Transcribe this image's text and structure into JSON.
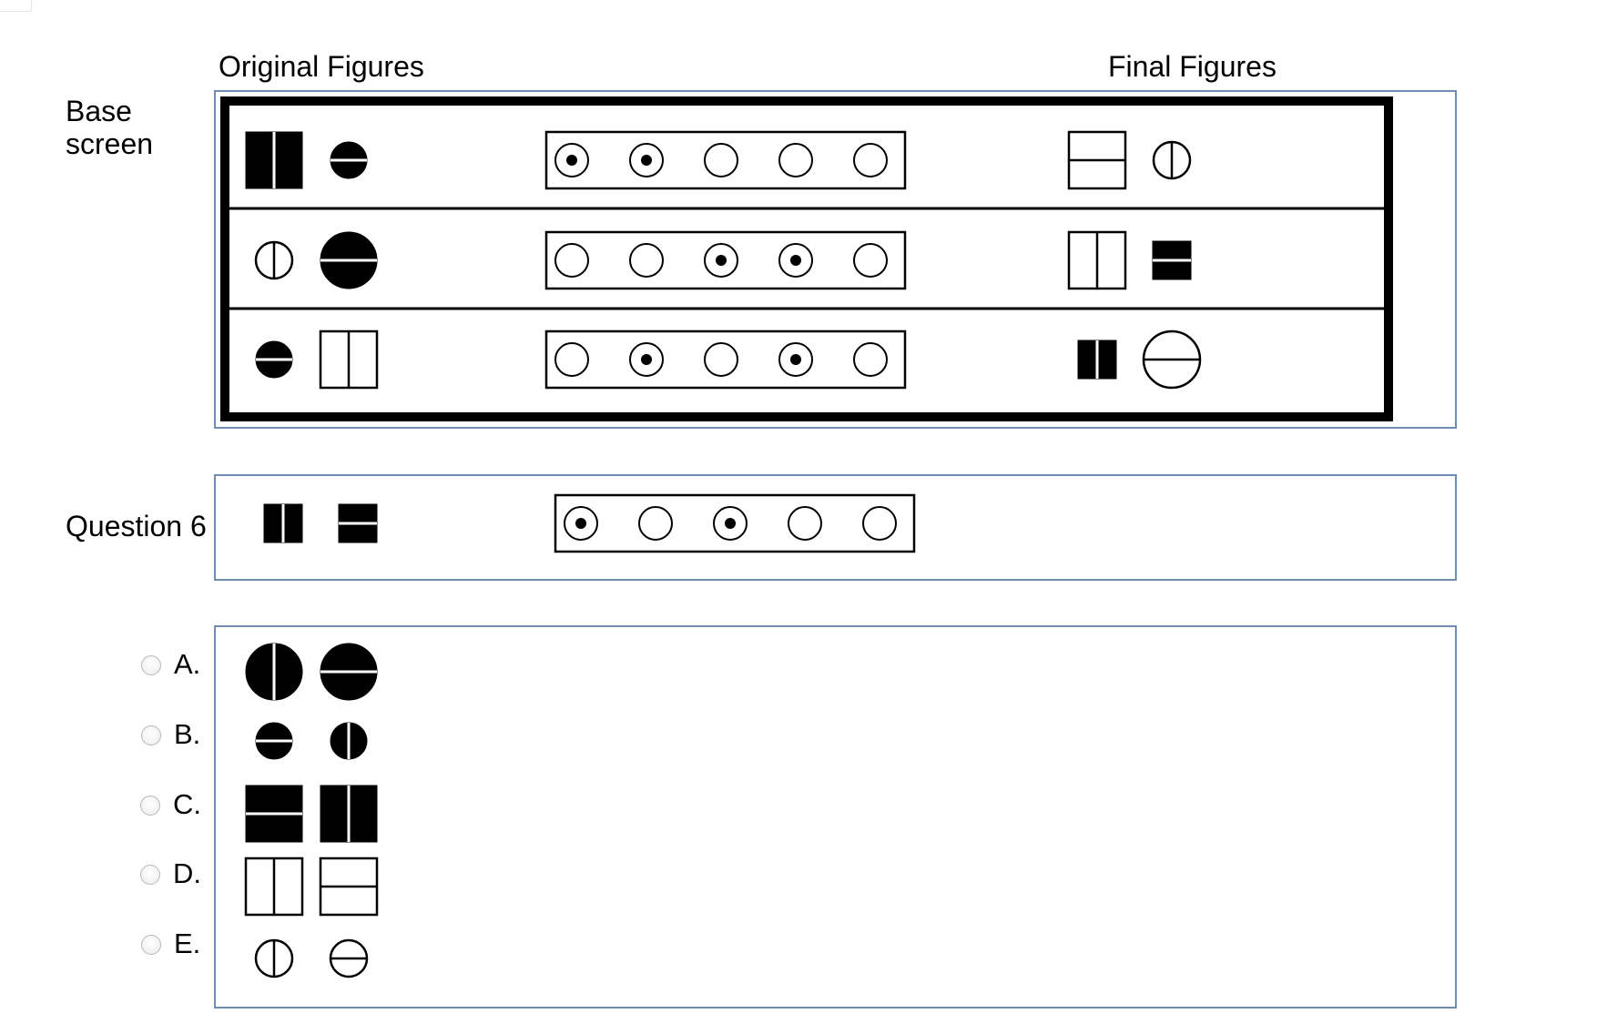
{
  "headers": {
    "original": "Original Figures",
    "final": "Final Figures"
  },
  "base": {
    "label_line1": "Base",
    "label_line2": "screen",
    "rows": [
      {
        "original": [
          "vertical-bar-rect-filled-icon",
          "horizontal-split-circle-filled-small-icon"
        ],
        "switches": [
          true,
          true,
          false,
          false,
          false
        ],
        "final": [
          "horizontal-split-rect-outline-icon",
          "vertical-split-circle-outline-icon"
        ]
      },
      {
        "original": [
          "vertical-split-circle-outline-icon",
          "horizontal-split-circle-filled-icon"
        ],
        "switches": [
          false,
          false,
          true,
          true,
          false
        ],
        "final": [
          "vertical-split-rect-outline-icon",
          "horizontal-bar-rect-filled-icon"
        ]
      },
      {
        "original": [
          "horizontal-split-circle-filled-small-icon",
          "vertical-split-rect-outline-icon"
        ],
        "switches": [
          false,
          true,
          false,
          true,
          false
        ],
        "final": [
          "vertical-bar-rect-filled-icon",
          "horizontal-split-circle-outline-icon"
        ]
      }
    ]
  },
  "question": {
    "label": "Question 6",
    "original": [
      "vertical-bar-rect-filled-icon",
      "horizontal-bar-rect-filled-icon"
    ],
    "switches": [
      true,
      false,
      true,
      false,
      false
    ]
  },
  "answers": [
    {
      "letter": "A.",
      "figures": [
        "vertical-split-circle-filled-icon",
        "horizontal-split-circle-filled-icon"
      ]
    },
    {
      "letter": "B.",
      "figures": [
        "horizontal-split-circle-filled-small-icon",
        "vertical-split-circle-filled-small-icon"
      ]
    },
    {
      "letter": "C.",
      "figures": [
        "horizontal-bar-rect-filled-icon",
        "vertical-bar-rect-filled-icon"
      ]
    },
    {
      "letter": "D.",
      "figures": [
        "vertical-split-rect-outline-icon",
        "horizontal-split-rect-outline-icon"
      ]
    },
    {
      "letter": "E.",
      "figures": [
        "vertical-split-circle-outline-icon",
        "horizontal-split-circle-outline-icon"
      ]
    }
  ],
  "colors": {
    "panel_border": "#6f8db0",
    "figure": "#000000"
  }
}
